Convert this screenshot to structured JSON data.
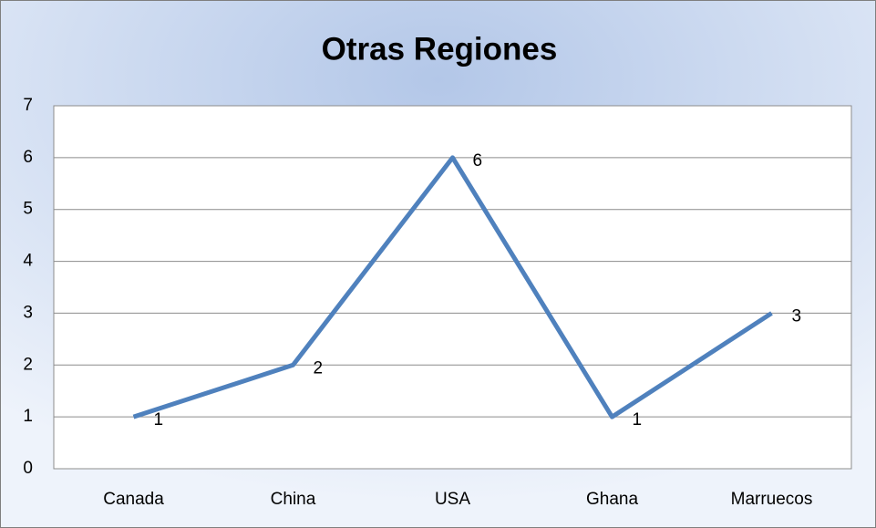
{
  "chart_data": {
    "type": "line",
    "title": "Otras Regiones",
    "categories": [
      "Canada",
      "China",
      "USA",
      "Ghana",
      "Marruecos"
    ],
    "values": [
      1,
      2,
      6,
      1,
      3
    ],
    "color": "#4f81bd",
    "ylim": [
      0,
      7
    ],
    "yticks": [
      0,
      1,
      2,
      3,
      4,
      5,
      6,
      7
    ],
    "grid": true
  }
}
